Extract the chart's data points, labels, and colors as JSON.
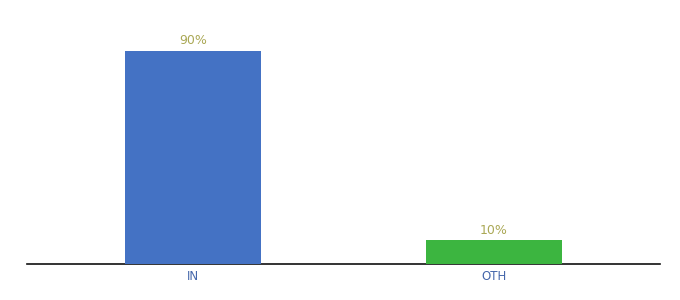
{
  "categories": [
    "IN",
    "OTH"
  ],
  "values": [
    90,
    10
  ],
  "bar_colors": [
    "#4472c4",
    "#3cb540"
  ],
  "labels": [
    "90%",
    "10%"
  ],
  "background_color": "#ffffff",
  "label_color": "#aaa855",
  "label_fontsize": 9,
  "tick_fontsize": 8.5,
  "tick_color": "#4466aa",
  "ylim": [
    0,
    105
  ],
  "bar_width": 0.45
}
